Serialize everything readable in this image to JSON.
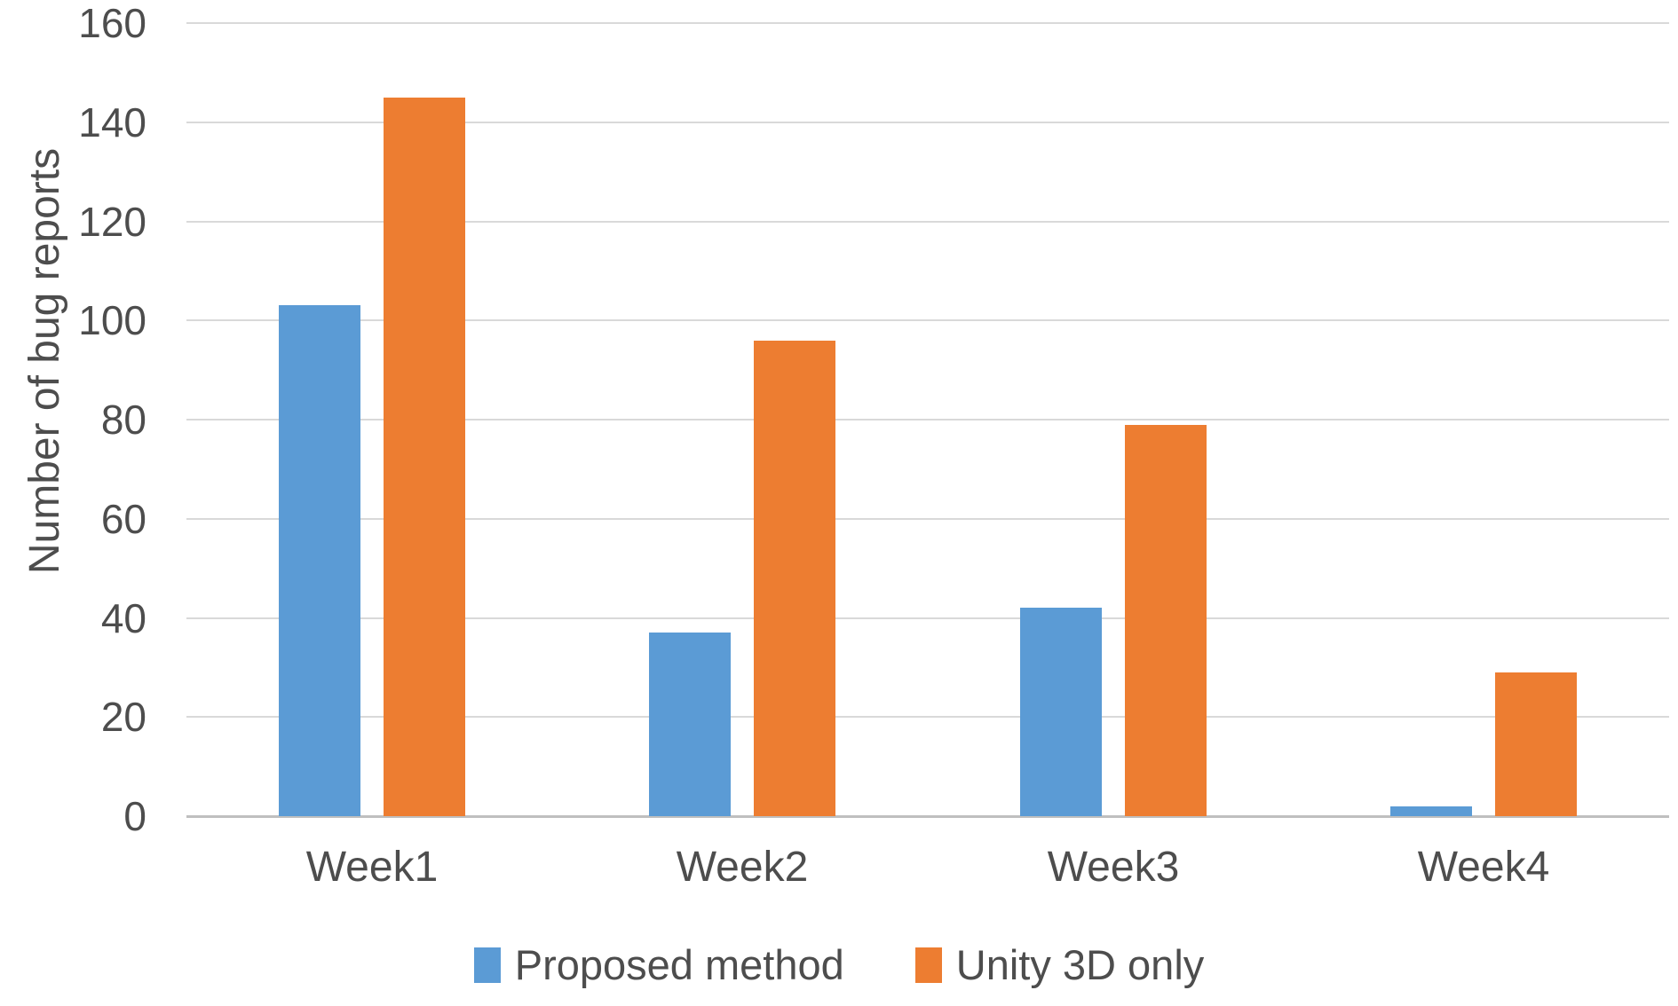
{
  "chart_data": {
    "type": "bar",
    "title": "",
    "xlabel": "",
    "ylabel": "Number of bug reports",
    "categories": [
      "Week1",
      "Week2",
      "Week3",
      "Week4"
    ],
    "series": [
      {
        "name": "Proposed method",
        "color": "#5B9BD5",
        "values": [
          103,
          37,
          42,
          2
        ]
      },
      {
        "name": "Unity 3D only",
        "color": "#ED7D31",
        "values": [
          145,
          96,
          79,
          29
        ]
      }
    ],
    "ylim": [
      0,
      160
    ],
    "yticks": [
      0,
      20,
      40,
      60,
      80,
      100,
      120,
      140,
      160
    ],
    "grid": "horizontal",
    "legend_position": "bottom",
    "grid_color": "#D9D9D9",
    "axis_line_color": "#BFBFBF",
    "text_color": "#4D4D4D"
  }
}
